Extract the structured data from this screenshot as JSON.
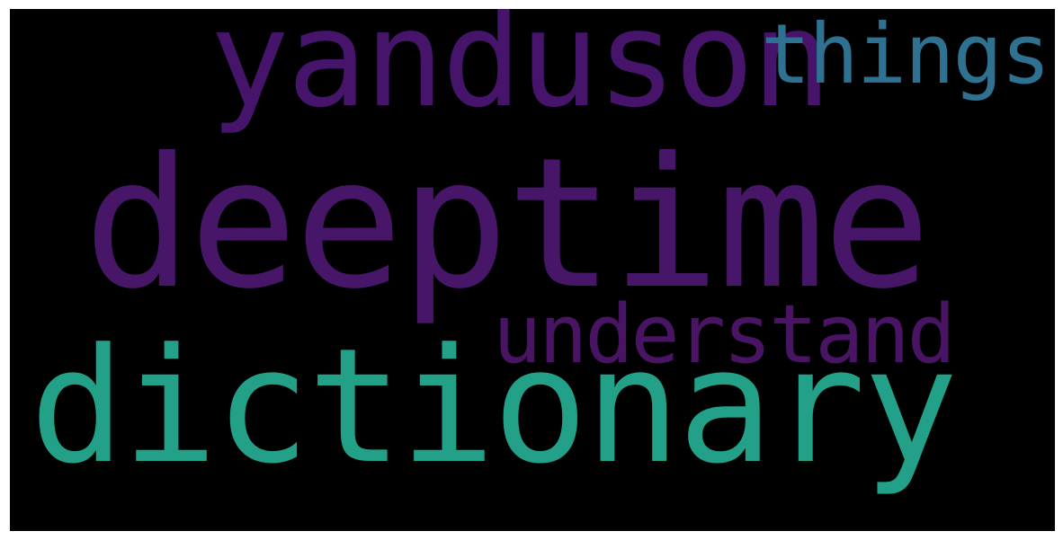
{
  "background_color": "#000000",
  "words": [
    {
      "id": "yanduson",
      "text": "yanduson",
      "color": "#46156b"
    },
    {
      "id": "things",
      "text": "things",
      "color": "#2e7190"
    },
    {
      "id": "deeptime",
      "text": "deeptime",
      "color": "#471669"
    },
    {
      "id": "understand",
      "text": "understand",
      "color": "#4a1465"
    },
    {
      "id": "dictionary",
      "text": "dictionary",
      "color": "#22a188"
    }
  ]
}
